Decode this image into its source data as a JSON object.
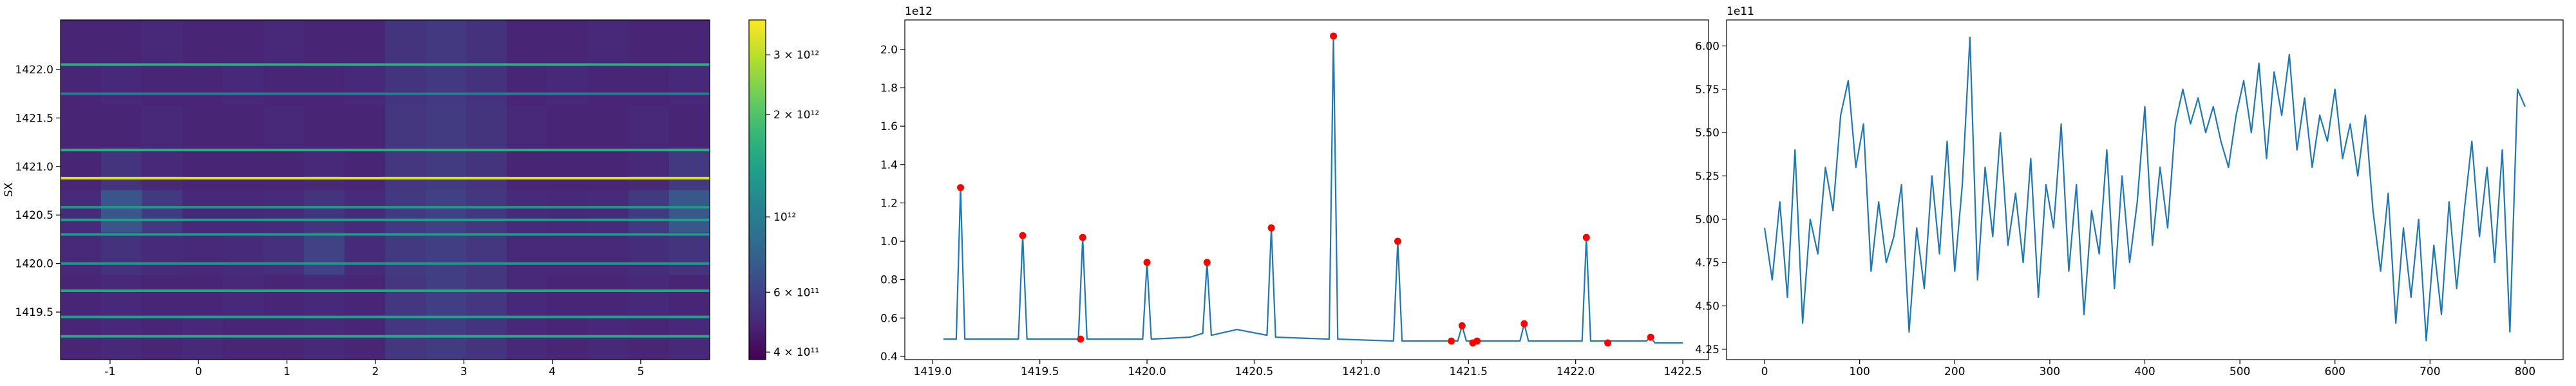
{
  "chart_data": [
    {
      "type": "heatmap",
      "xlim": [
        -1.56,
        5.78
      ],
      "ylim": [
        1419.01,
        1422.51
      ],
      "xticks": [
        -1,
        0,
        1,
        2,
        3,
        4,
        5
      ],
      "yticks": [
        1419.5,
        {
          "value": 1420,
          "label": "1420.0"
        },
        1420.5,
        {
          "value": 1421,
          "label": "1421.0"
        },
        1421.5,
        {
          "value": 1422,
          "label": "1422.0"
        }
      ],
      "ylabel": "SX",
      "colormap": "viridis",
      "values": [
        [
          480000000000.0,
          490000000000.0,
          480000000000.0,
          490000000000.0,
          480000000000.0,
          480000000000.0,
          490000000000.0,
          480000000000.0,
          550000000000.0,
          570000000000.0,
          540000000000.0,
          490000000000.0,
          480000000000.0,
          490000000000.0,
          480000000000.0,
          490000000000.0
        ],
        [
          480000000000.0,
          490000000000.0,
          480000000000.0,
          480000000000.0,
          490000000000.0,
          480000000000.0,
          490000000000.0,
          480000000000.0,
          550000000000.0,
          580000000000.0,
          550000000000.0,
          490000000000.0,
          480000000000.0,
          480000000000.0,
          490000000000.0,
          480000000000.0
        ],
        [
          490000000000.0,
          530000000000.0,
          500000000000.0,
          490000000000.0,
          500000000000.0,
          520000000000.0,
          600000000000.0,
          500000000000.0,
          560000000000.0,
          580000000000.0,
          550000000000.0,
          490000000000.0,
          490000000000.0,
          490000000000.0,
          510000000000.0,
          540000000000.0
        ],
        [
          500000000000.0,
          700000000000.0,
          560000000000.0,
          490000000000.0,
          490000000000.0,
          500000000000.0,
          540000000000.0,
          500000000000.0,
          560000000000.0,
          590000000000.0,
          550000000000.0,
          500000000000.0,
          490000000000.0,
          500000000000.0,
          560000000000.0,
          720000000000.0
        ],
        [
          480000000000.0,
          540000000000.0,
          490000000000.0,
          480000000000.0,
          480000000000.0,
          480000000000.0,
          490000000000.0,
          480000000000.0,
          550000000000.0,
          570000000000.0,
          540000000000.0,
          480000000000.0,
          480000000000.0,
          480000000000.0,
          490000000000.0,
          560000000000.0
        ],
        [
          480000000000.0,
          480000000000.0,
          490000000000.0,
          480000000000.0,
          480000000000.0,
          490000000000.0,
          480000000000.0,
          480000000000.0,
          550000000000.0,
          570000000000.0,
          540000000000.0,
          490000000000.0,
          480000000000.0,
          480000000000.0,
          490000000000.0,
          480000000000.0
        ],
        [
          480000000000.0,
          490000000000.0,
          480000000000.0,
          480000000000.0,
          490000000000.0,
          480000000000.0,
          480000000000.0,
          490000000000.0,
          540000000000.0,
          560000000000.0,
          530000000000.0,
          480000000000.0,
          490000000000.0,
          480000000000.0,
          480000000000.0,
          490000000000.0
        ],
        [
          480000000000.0,
          480000000000.0,
          490000000000.0,
          480000000000.0,
          480000000000.0,
          490000000000.0,
          480000000000.0,
          480000000000.0,
          540000000000.0,
          560000000000.0,
          530000000000.0,
          480000000000.0,
          480000000000.0,
          490000000000.0,
          480000000000.0,
          480000000000.0
        ]
      ],
      "lines": {
        "y": [
          1419.25,
          1419.45,
          1419.72,
          1420.0,
          1420.3,
          1420.45,
          1420.58,
          1420.88,
          1421.17,
          1421.75,
          1422.05
        ],
        "values": [
          1500000000000.0,
          1400000000000.0,
          1500000000000.0,
          1300000000000.0,
          1300000000000.0,
          1400000000000.0,
          1300000000000.0,
          3300000000000.0,
          1600000000000.0,
          1000000000000.0,
          1600000000000.0
        ]
      },
      "colorbar": {
        "scale": "log",
        "lim": [
          380000000000.0,
          3800000000000.0
        ],
        "ticks": [
          {
            "value": 400000000000.0,
            "label": "4 × 10¹¹"
          },
          {
            "value": 600000000000.0,
            "label": "6 × 10¹¹"
          },
          {
            "value": 1000000000000.0,
            "label": "10¹²"
          },
          {
            "value": 2000000000000.0,
            "label": "2 × 10¹²"
          },
          {
            "value": 3000000000000.0,
            "label": "3 × 10¹²"
          }
        ]
      }
    },
    {
      "type": "line",
      "offset_text": "1e12",
      "color": "#1f77b4",
      "xlim": [
        1418.87,
        1422.62
      ],
      "ylim": [
        0.383,
        2.154
      ],
      "xticks": [
        {
          "value": 1419,
          "label": "1419.0"
        },
        1419.5,
        {
          "value": 1420,
          "label": "1420.0"
        },
        1420.5,
        {
          "value": 1421,
          "label": "1421.0"
        },
        1421.5,
        {
          "value": 1422,
          "label": "1422.0"
        },
        1422.5
      ],
      "yticks": [
        0.4,
        0.6,
        0.8,
        {
          "value": 1,
          "label": "1.0"
        },
        1.2,
        1.4,
        1.6,
        1.8,
        {
          "value": 2,
          "label": "2.0"
        }
      ],
      "x": [
        1419.05,
        1419.11,
        1419.13,
        1419.15,
        1419.4,
        1419.42,
        1419.44,
        1419.68,
        1419.7,
        1419.72,
        1419.98,
        1420.0,
        1420.02,
        1420.2,
        1420.26,
        1420.28,
        1420.3,
        1420.42,
        1420.56,
        1420.58,
        1420.6,
        1420.85,
        1420.87,
        1420.89,
        1421.15,
        1421.17,
        1421.19,
        1421.45,
        1421.47,
        1421.49,
        1421.74,
        1421.76,
        1421.78,
        1422.03,
        1422.05,
        1422.07,
        1422.33,
        1422.35,
        1422.37,
        1422.5
      ],
      "values": [
        0.49,
        0.49,
        1.28,
        0.49,
        0.49,
        1.03,
        0.49,
        0.49,
        1.02,
        0.49,
        0.49,
        0.89,
        0.49,
        0.5,
        0.52,
        0.89,
        0.51,
        0.54,
        0.51,
        1.07,
        0.5,
        0.49,
        2.07,
        0.49,
        0.48,
        1.0,
        0.48,
        0.48,
        0.56,
        0.48,
        0.48,
        0.57,
        0.48,
        0.48,
        1.02,
        0.48,
        0.48,
        0.5,
        0.47,
        0.47
      ],
      "peaks": {
        "color": "#ff0000",
        "x": [
          1419.13,
          1419.42,
          1419.69,
          1419.7,
          1420.0,
          1420.28,
          1420.58,
          1420.87,
          1421.17,
          1421.42,
          1421.47,
          1421.52,
          1421.54,
          1421.76,
          1422.05,
          1422.15,
          1422.35
        ],
        "values": [
          1.28,
          1.03,
          0.49,
          1.02,
          0.89,
          0.89,
          1.07,
          2.07,
          1.0,
          0.48,
          0.56,
          0.47,
          0.48,
          0.57,
          1.02,
          0.47,
          0.5
        ]
      }
    },
    {
      "type": "line",
      "offset_text": "1e11",
      "color": "#1f77b4",
      "xlim": [
        -40,
        840
      ],
      "ylim": [
        4.19,
        6.15
      ],
      "xticks": [
        0,
        100,
        200,
        300,
        400,
        500,
        600,
        700,
        800
      ],
      "yticks": [
        4.25,
        {
          "value": 4.5,
          "label": "4.50"
        },
        4.75,
        {
          "value": 5,
          "label": "5.00"
        },
        5.25,
        {
          "value": 5.5,
          "label": "5.50"
        },
        5.75,
        {
          "value": 6,
          "label": "6.00"
        }
      ],
      "x": [
        0,
        8,
        16,
        24,
        32,
        40,
        48,
        56,
        64,
        72,
        80,
        88,
        96,
        104,
        112,
        120,
        128,
        136,
        144,
        152,
        160,
        168,
        176,
        184,
        192,
        200,
        208,
        216,
        224,
        232,
        240,
        248,
        256,
        264,
        272,
        280,
        288,
        296,
        304,
        312,
        320,
        328,
        336,
        344,
        352,
        360,
        368,
        376,
        384,
        392,
        400,
        408,
        416,
        424,
        432,
        440,
        448,
        456,
        464,
        472,
        480,
        488,
        496,
        504,
        512,
        520,
        528,
        536,
        544,
        552,
        560,
        568,
        576,
        584,
        592,
        600,
        608,
        616,
        624,
        632,
        640,
        648,
        656,
        664,
        672,
        680,
        688,
        696,
        704,
        712,
        720,
        728,
        736,
        744,
        752,
        760,
        768,
        776,
        784,
        792,
        800
      ],
      "values": [
        4.95,
        4.65,
        5.1,
        4.55,
        5.4,
        4.4,
        5.0,
        4.8,
        5.3,
        5.05,
        5.6,
        5.8,
        5.3,
        5.55,
        4.7,
        5.1,
        4.75,
        4.9,
        5.2,
        4.35,
        4.95,
        4.6,
        5.25,
        4.8,
        5.45,
        4.7,
        5.2,
        6.05,
        4.65,
        5.3,
        4.9,
        5.5,
        4.85,
        5.15,
        4.75,
        5.35,
        4.55,
        5.2,
        4.95,
        5.55,
        4.7,
        5.2,
        4.45,
        5.05,
        4.8,
        5.4,
        4.6,
        5.25,
        4.75,
        5.1,
        5.65,
        4.85,
        5.3,
        4.95,
        5.55,
        5.75,
        5.55,
        5.7,
        5.5,
        5.65,
        5.45,
        5.3,
        5.6,
        5.8,
        5.5,
        5.9,
        5.35,
        5.85,
        5.6,
        5.95,
        5.4,
        5.7,
        5.3,
        5.6,
        5.45,
        5.75,
        5.35,
        5.55,
        5.25,
        5.6,
        5.05,
        4.7,
        5.15,
        4.4,
        4.95,
        4.55,
        5.0,
        4.3,
        4.85,
        4.45,
        5.1,
        4.6,
        5.05,
        5.45,
        4.9,
        5.3,
        4.75,
        5.4,
        4.35,
        5.75,
        5.65
      ]
    }
  ]
}
